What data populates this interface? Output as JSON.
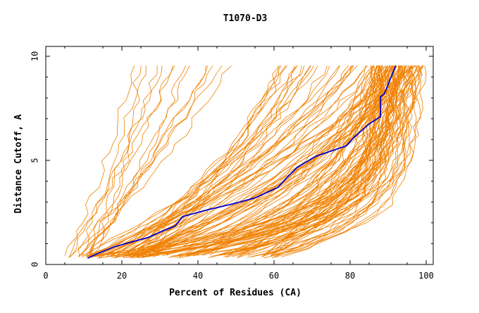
{
  "chart_data": {
    "type": "line",
    "title": "T1070-D3",
    "xlabel": "Percent of Residues (CA)",
    "ylabel": "Distance Cutoff, A",
    "xlim": [
      0,
      100
    ],
    "ylim": [
      0,
      10
    ],
    "xticks": [
      0,
      20,
      40,
      60,
      80,
      100
    ],
    "yticks": [
      0,
      5,
      10
    ],
    "grid": false,
    "legend": "none",
    "colors": {
      "models": "#f08000",
      "highlight": "#0000cc"
    },
    "highlight": {
      "points": [
        [
          11,
          0.3
        ],
        [
          14,
          0.55
        ],
        [
          18,
          0.85
        ],
        [
          22,
          1.05
        ],
        [
          27,
          1.3
        ],
        [
          30,
          1.55
        ],
        [
          34,
          1.85
        ],
        [
          36,
          2.3
        ],
        [
          42,
          2.6
        ],
        [
          50,
          2.95
        ],
        [
          55,
          3.2
        ],
        [
          61,
          3.7
        ],
        [
          63,
          4.1
        ],
        [
          66,
          4.65
        ],
        [
          71,
          5.2
        ],
        [
          79,
          5.7
        ],
        [
          81,
          6.1
        ],
        [
          85,
          6.75
        ],
        [
          88,
          7.1
        ],
        [
          88,
          8.05
        ],
        [
          89,
          8.2
        ],
        [
          92,
          9.55
        ]
      ]
    },
    "model_groups": [
      {
        "count": 14,
        "start": [
          5,
          12,
          0.3
        ],
        "end": [
          13,
          55,
          9.55
        ],
        "k": [
          0.25,
          0.45
        ]
      },
      {
        "count": 38,
        "start": [
          8,
          26,
          0.3
        ],
        "end": [
          60,
          99,
          9.55
        ],
        "k": [
          0.6,
          1.3
        ]
      },
      {
        "count": 36,
        "start": [
          17,
          60,
          0.35
        ],
        "end": [
          84,
          100,
          9.55
        ],
        "k": [
          1.2,
          2.3
        ]
      },
      {
        "count": 56,
        "start": [
          12,
          62,
          0.3
        ],
        "end": [
          86,
          100,
          9.55
        ],
        "k": [
          3.5,
          6.5
        ]
      }
    ]
  }
}
